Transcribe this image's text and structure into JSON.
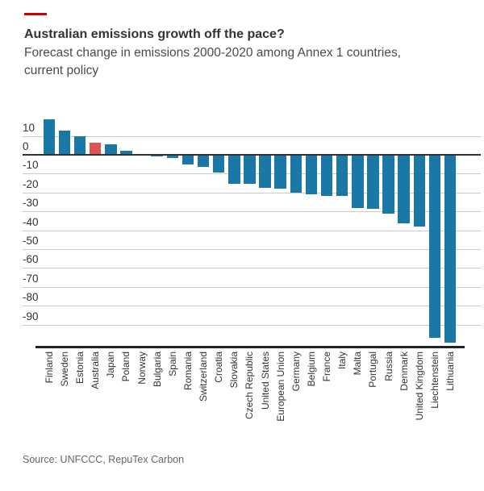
{
  "header": {
    "accent_rule_color": "#c70000",
    "title": "Australian emissions growth off the pace?",
    "subtitle_line1": "Forecast change in emissions 2000-2020 among Annex 1 countries,",
    "subtitle_line2": "current policy"
  },
  "footer": {
    "source": "Source: UNFCCC, RepuTex Carbon"
  },
  "chart_data": {
    "type": "bar",
    "title": "Australian emissions growth off the pace?",
    "subtitle": "Forecast change in emissions 2000-2020 among Annex 1 countries, current policy",
    "categories": [
      "Finland",
      "Sweden",
      "Estonia",
      "Australia",
      "Japan",
      "Poland",
      "Norway",
      "Bulgaria",
      "Spain",
      "Romania",
      "Switzerland",
      "Croatia",
      "Slovakia",
      "Czech Republic",
      "United States",
      "European Union",
      "Germany",
      "Belgium",
      "France",
      "Italy",
      "Malta",
      "Portugal",
      "Russia",
      "Denmark",
      "United Kingdom",
      "Liechtenstein",
      "Lithuania"
    ],
    "values": [
      19,
      13,
      10,
      6.5,
      5.5,
      2,
      0.5,
      -1,
      -1.5,
      -5,
      -6.5,
      -9.5,
      -15.5,
      -15.5,
      -17.5,
      -18,
      -20,
      -21,
      -22,
      -22,
      -28,
      -28.5,
      -31,
      -36.5,
      -38,
      -97,
      -99.5
    ],
    "highlight_category": "Australia",
    "colors": {
      "bar": "#1a78a7",
      "highlight": "#e0524f",
      "gridline": "#cccccc",
      "zero_line": "#333333",
      "axis_line": "#222222"
    },
    "yticks": [
      10,
      0,
      -10,
      -20,
      -30,
      -40,
      -50,
      -60,
      -70,
      -80,
      -90
    ],
    "ylim": [
      -101,
      21
    ],
    "grid": true,
    "legend": "none",
    "x_label_rotation": -90
  }
}
